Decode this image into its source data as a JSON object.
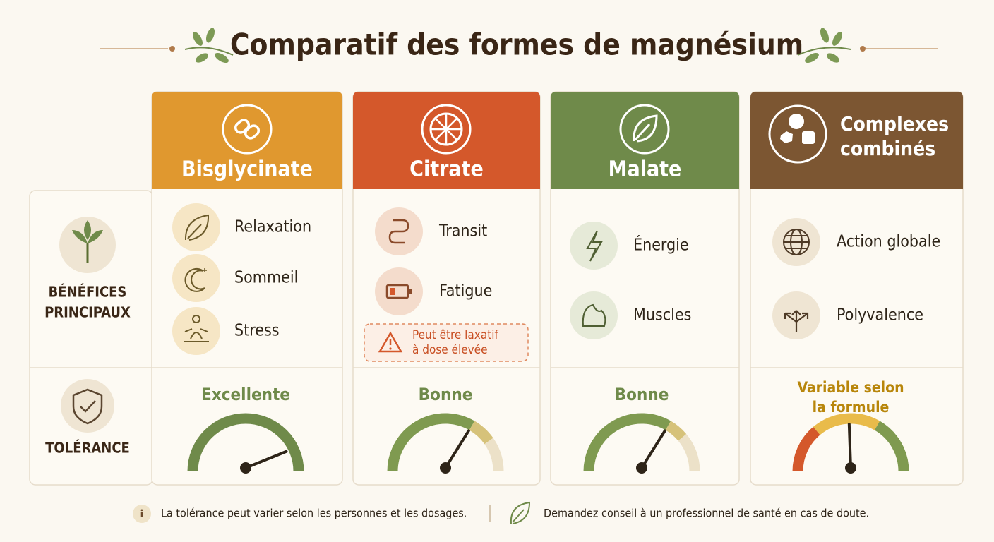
{
  "title": "Comparatif des formes de magnésium",
  "row_labels": {
    "benefits": [
      "BÉNÉFICES",
      "PRINCIPAUX"
    ],
    "tolerance": "TOLÉRANCE"
  },
  "columns": [
    {
      "name": [
        "Bisglycinate"
      ],
      "benefits": [
        "Relaxation",
        "Sommeil",
        "Stress"
      ],
      "tolerance": [
        "Excellente"
      ]
    },
    {
      "name": [
        "Citrate"
      ],
      "benefits": [
        "Transit",
        "Fatigue"
      ],
      "warning": [
        "Peut être laxatif",
        "à dose élevée"
      ],
      "tolerance": [
        "Bonne"
      ]
    },
    {
      "name": [
        "Malate"
      ],
      "benefits": [
        "Énergie",
        "Muscles"
      ],
      "tolerance": [
        "Bonne"
      ]
    },
    {
      "name": [
        "Complexes",
        "combinés"
      ],
      "benefits": [
        "Action globale",
        "Polyvalence"
      ],
      "tolerance": [
        "Variable selon",
        "la formule"
      ]
    }
  ],
  "footer": [
    "La tolérance peut varier selon les personnes et les dosages.",
    "Demandez conseil à un professionnel de santé en cas de doute."
  ]
}
